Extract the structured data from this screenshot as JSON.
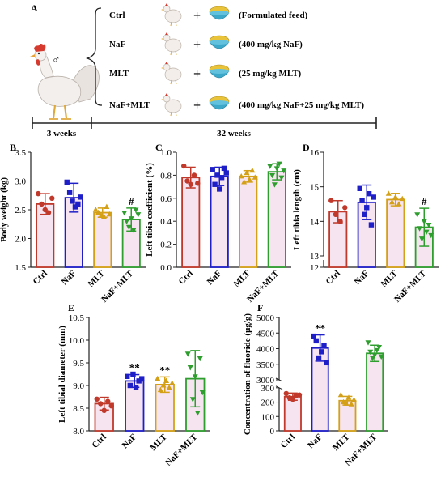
{
  "design": {
    "panel_label": "A",
    "sex_symbol": "♂",
    "plus_sign": "+",
    "groups": [
      {
        "name": "Ctrl",
        "treatment": "(Formulated feed)"
      },
      {
        "name": "NaF",
        "treatment": "(400 mg/kg NaF)"
      },
      {
        "name": "MLT",
        "treatment": "(25 mg/kg MLT)"
      },
      {
        "name": "NaF+MLT",
        "treatment": "(400 mg/kg NaF+25 mg/kg MLT)"
      }
    ],
    "timeline": {
      "phase1": "3 weeks",
      "phase2": "32 weeks"
    }
  },
  "colors": {
    "Ctrl": "#c0392b",
    "NaF": "#1f1fc8",
    "MLT": "#d4a017",
    "NaF+MLT": "#2e9e2e",
    "bar_fill": "#f7e4f1"
  },
  "chart_data": [
    {
      "id": "B",
      "panel_label": "B",
      "type": "bar",
      "categories": [
        "Ctrl",
        "NaF",
        "MLT",
        "NaF+MLT"
      ],
      "ylabel": "Body weight (kg)",
      "ylim": [
        1.5,
        3.5
      ],
      "yticks": [
        1.5,
        2.0,
        2.5,
        3.0,
        3.5
      ],
      "values": [
        2.6,
        2.71,
        2.45,
        2.33
      ],
      "errors": [
        0.18,
        0.25,
        0.08,
        0.2
      ],
      "points": [
        [
          2.78,
          2.6,
          2.5,
          2.45,
          2.7
        ],
        [
          2.98,
          2.8,
          2.65,
          2.55,
          2.6,
          2.72
        ],
        [
          2.5,
          2.45,
          2.4,
          2.38,
          2.55,
          2.42
        ],
        [
          2.45,
          2.3,
          2.2,
          2.35,
          2.15,
          2.5,
          2.42
        ]
      ],
      "markers": [
        "circle",
        "square",
        "triangle",
        "triangle-down"
      ],
      "annotations": [
        "",
        "",
        "",
        "#"
      ]
    },
    {
      "id": "C",
      "panel_label": "C",
      "type": "bar",
      "categories": [
        "Ctrl",
        "NaF",
        "MLT",
        "NaF+MLT"
      ],
      "ylabel": "Left tibia coefficient (%)",
      "ylim": [
        0,
        1.0
      ],
      "yticks": [
        0.0,
        0.2,
        0.4,
        0.6,
        0.8,
        1.0
      ],
      "values": [
        0.78,
        0.79,
        0.79,
        0.83
      ],
      "errors": [
        0.09,
        0.08,
        0.05,
        0.07
      ],
      "points": [
        [
          0.88,
          0.75,
          0.72,
          0.8,
          0.73
        ],
        [
          0.85,
          0.72,
          0.8,
          0.68,
          0.78,
          0.86,
          0.82
        ],
        [
          0.79,
          0.74,
          0.82,
          0.76,
          0.84,
          0.78
        ],
        [
          0.88,
          0.8,
          0.72,
          0.86,
          0.9,
          0.78,
          0.84
        ]
      ],
      "markers": [
        "circle",
        "square",
        "triangle",
        "triangle-down"
      ],
      "annotations": [
        "",
        "",
        "",
        ""
      ]
    },
    {
      "id": "D",
      "panel_label": "D",
      "type": "bar",
      "categories": [
        "Ctrl",
        "NaF",
        "MLT",
        "NaF+MLT"
      ],
      "ylabel": "Left tibia length (cm)",
      "ylim": [
        12,
        16
      ],
      "yticks": [
        12,
        13,
        14,
        15,
        16
      ],
      "broken_axis": true,
      "values": [
        14.28,
        14.55,
        14.63,
        13.83
      ],
      "errors": [
        0.32,
        0.5,
        0.18,
        0.55
      ],
      "points": [
        [
          14.6,
          14.2,
          14.0,
          14.4
        ],
        [
          14.95,
          14.6,
          14.2,
          14.4,
          14.8,
          13.9,
          14.7
        ],
        [
          14.8,
          14.55,
          14.7,
          14.5,
          14.65
        ],
        [
          14.2,
          13.8,
          13.5,
          14.0,
          13.7,
          13.9,
          13.6
        ]
      ],
      "markers": [
        "circle",
        "square",
        "triangle",
        "triangle-down"
      ],
      "annotations": [
        "",
        "",
        "",
        "#"
      ]
    },
    {
      "id": "E",
      "panel_label": "E",
      "type": "bar",
      "categories": [
        "Ctrl",
        "NaF",
        "MLT",
        "NaF+MLT"
      ],
      "ylabel": "Left tibial diameter (mm)",
      "ylim": [
        8.0,
        10.5
      ],
      "yticks": [
        8.0,
        8.5,
        9.0,
        9.5,
        10.0,
        10.5
      ],
      "values": [
        8.6,
        9.1,
        9.02,
        9.15
      ],
      "errors": [
        0.14,
        0.14,
        0.17,
        0.62
      ],
      "points": [
        [
          8.7,
          8.6,
          8.45,
          8.65,
          8.55
        ],
        [
          9.2,
          9.0,
          9.25,
          8.95,
          9.1,
          9.15
        ],
        [
          9.15,
          8.9,
          9.0,
          9.1,
          8.95,
          9.05
        ],
        [
          9.7,
          9.4,
          8.7,
          9.2,
          8.4,
          9.6,
          8.85
        ]
      ],
      "markers": [
        "circle",
        "square",
        "triangle",
        "triangle-down"
      ],
      "annotations": [
        "",
        "**",
        "**",
        ""
      ]
    },
    {
      "id": "F",
      "panel_label": "F",
      "type": "bar",
      "categories": [
        "Ctrl",
        "NaF",
        "MLT",
        "NaF+MLT"
      ],
      "ylabel": "Concentration of fluoride (μg/g)",
      "broken_axis": true,
      "lower_yticks": [
        0,
        100,
        200,
        300
      ],
      "upper_yticks": [
        3000,
        3500,
        4000,
        4500,
        5000
      ],
      "lower_range": [
        0,
        300
      ],
      "upper_range": [
        3000,
        5000
      ],
      "values": [
        238,
        4020,
        210,
        3850
      ],
      "errors": [
        25,
        420,
        30,
        260
      ],
      "points": [
        [
          260,
          230,
          220,
          245,
          250
        ],
        [
          4400,
          4250,
          3700,
          3900,
          4100,
          3550
        ],
        [
          250,
          200,
          190,
          230,
          185,
          215
        ],
        [
          4200,
          3900,
          3700,
          3800,
          3950,
          4050,
          3750
        ]
      ],
      "markers": [
        "circle",
        "square",
        "triangle",
        "triangle-down"
      ],
      "annotations": [
        "",
        "**",
        "",
        ""
      ]
    }
  ]
}
